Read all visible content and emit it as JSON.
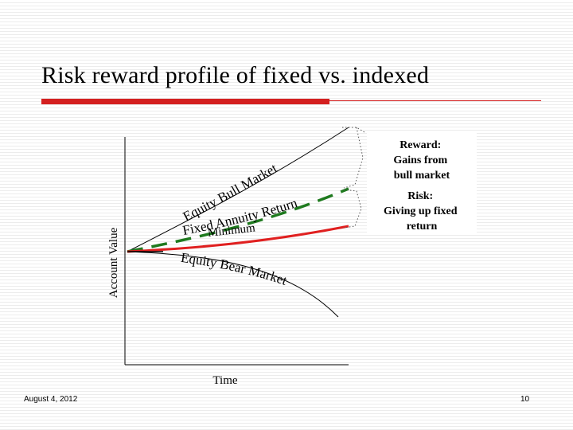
{
  "slide": {
    "title": "Risk reward profile of fixed vs. indexed",
    "date": "August 4, 2012",
    "page_number": "10"
  },
  "diagram": {
    "y_axis_label": "Account Value",
    "x_axis_label": "Time",
    "curves": {
      "bull": {
        "label": "Equity Bull Market",
        "color": "#000000"
      },
      "indexed": {
        "label": "Fixed Annuity Return",
        "color": "#1f7a1f"
      },
      "minimum": {
        "label": "Minimum",
        "color": "#e02020"
      },
      "bear": {
        "label": "Equity Bear Market",
        "color": "#000000"
      }
    },
    "reward_box": {
      "lines": [
        "Reward:",
        "Gains from",
        "bull market"
      ]
    },
    "risk_box": {
      "lines": [
        "Risk:",
        "Giving up fixed",
        "return"
      ]
    }
  }
}
